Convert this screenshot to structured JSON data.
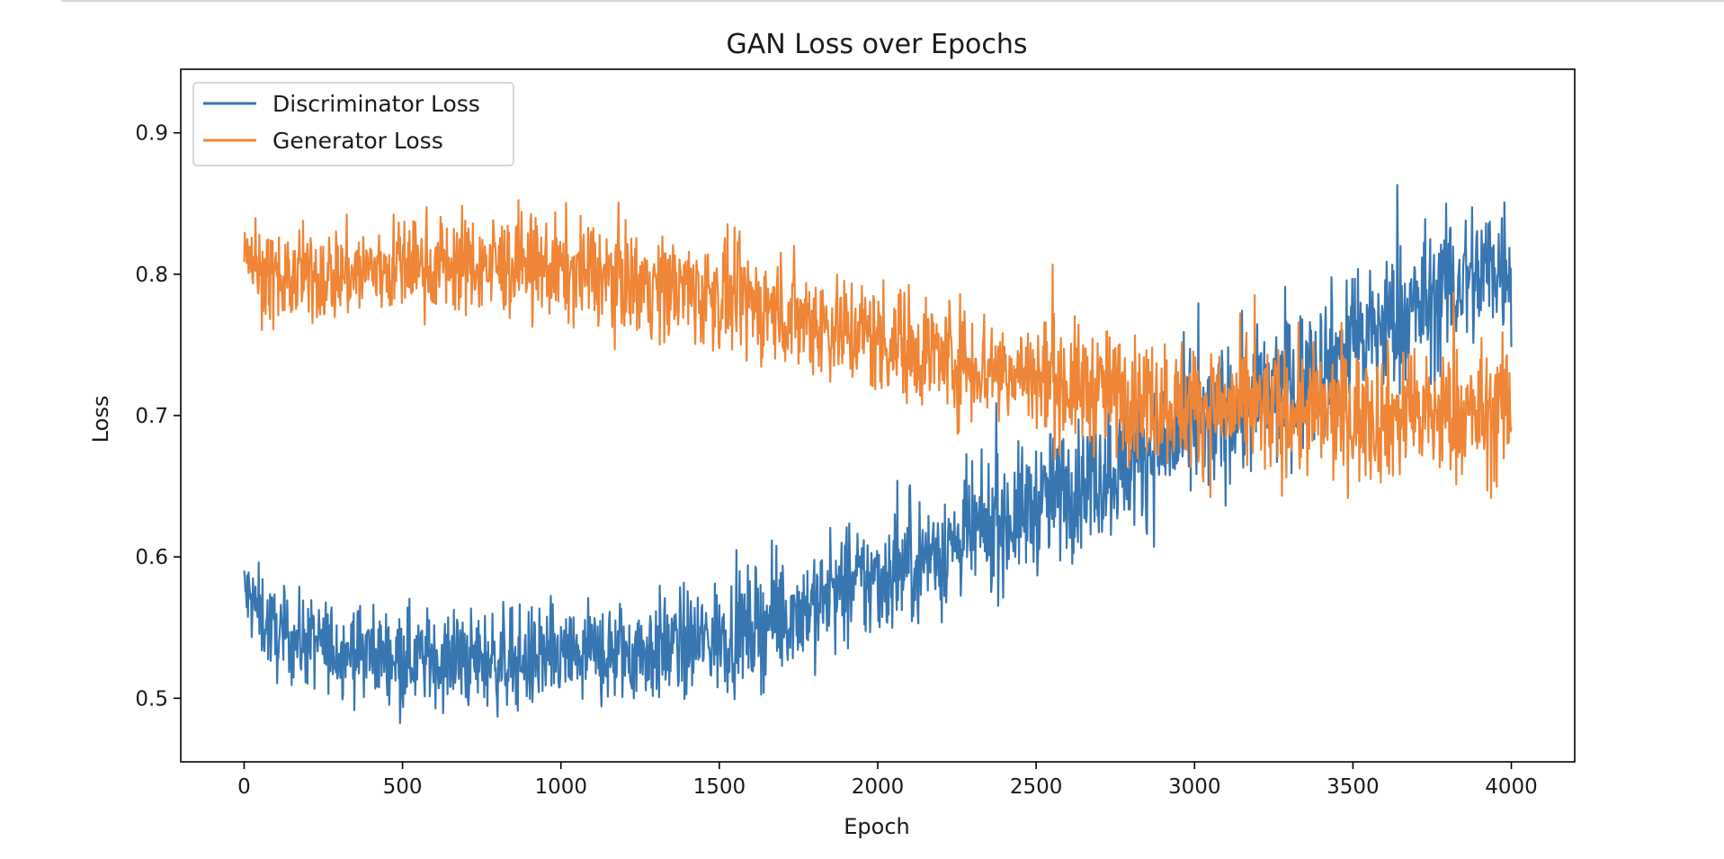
{
  "chart_data": {
    "type": "line",
    "title": "GAN Loss over Epochs",
    "xlabel": "Epoch",
    "ylabel": "Loss",
    "xlim": [
      -200,
      4200
    ],
    "ylim": [
      0.455,
      0.945
    ],
    "xticks": [
      0,
      500,
      1000,
      1500,
      2000,
      2500,
      3000,
      3500,
      4000
    ],
    "xtick_labels": [
      "0",
      "500",
      "1000",
      "1500",
      "2000",
      "2500",
      "3000",
      "3500",
      "4000"
    ],
    "yticks": [
      0.5,
      0.6,
      0.7,
      0.8,
      0.9
    ],
    "ytick_labels": [
      "0.5",
      "0.6",
      "0.7",
      "0.8",
      "0.9"
    ],
    "grid": false,
    "legend_position": "top-left",
    "series": [
      {
        "name": "Discriminator Loss",
        "color": "#3776b1",
        "x": [
          0,
          50,
          100,
          200,
          300,
          400,
          500,
          600,
          700,
          800,
          900,
          1000,
          1100,
          1200,
          1300,
          1400,
          1500,
          1600,
          1700,
          1800,
          1900,
          2000,
          2100,
          2200,
          2300,
          2400,
          2500,
          2600,
          2700,
          2800,
          2900,
          3000,
          3100,
          3200,
          3300,
          3400,
          3500,
          3600,
          3700,
          3800,
          3900,
          4000
        ],
        "y": [
          0.575,
          0.56,
          0.545,
          0.54,
          0.535,
          0.532,
          0.53,
          0.528,
          0.527,
          0.527,
          0.527,
          0.528,
          0.53,
          0.532,
          0.535,
          0.538,
          0.543,
          0.55,
          0.558,
          0.567,
          0.577,
          0.585,
          0.595,
          0.605,
          0.615,
          0.625,
          0.637,
          0.648,
          0.658,
          0.668,
          0.678,
          0.69,
          0.7,
          0.71,
          0.722,
          0.735,
          0.75,
          0.763,
          0.775,
          0.79,
          0.8,
          0.81
        ]
      },
      {
        "name": "Generator Loss",
        "color": "#ef8536",
        "x": [
          0,
          50,
          100,
          200,
          300,
          400,
          500,
          600,
          700,
          800,
          900,
          1000,
          1100,
          1200,
          1300,
          1400,
          1500,
          1600,
          1700,
          1800,
          1900,
          2000,
          2100,
          2200,
          2300,
          2400,
          2500,
          2600,
          2700,
          2800,
          2900,
          3000,
          3100,
          3200,
          3300,
          3400,
          3500,
          3600,
          3700,
          3800,
          3900,
          4000
        ],
        "y": [
          0.825,
          0.8,
          0.795,
          0.798,
          0.8,
          0.803,
          0.806,
          0.807,
          0.807,
          0.806,
          0.805,
          0.803,
          0.8,
          0.797,
          0.793,
          0.789,
          0.784,
          0.779,
          0.773,
          0.767,
          0.761,
          0.755,
          0.749,
          0.743,
          0.737,
          0.732,
          0.727,
          0.722,
          0.718,
          0.714,
          0.71,
          0.707,
          0.705,
          0.703,
          0.702,
          0.701,
          0.7,
          0.7,
          0.7,
          0.7,
          0.7,
          0.705
        ]
      }
    ]
  }
}
